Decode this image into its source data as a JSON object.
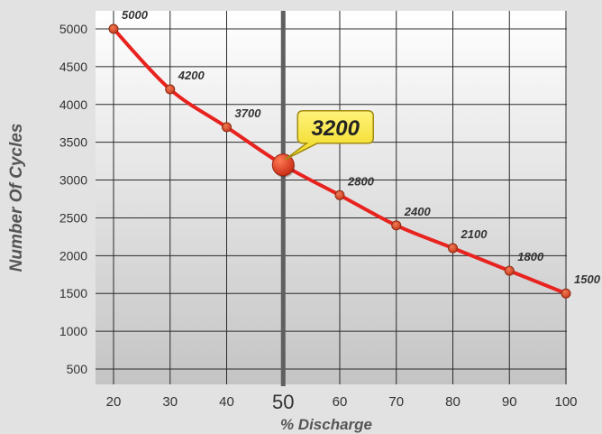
{
  "chart_data": {
    "type": "line",
    "xlabel": "% Discharge",
    "ylabel": "Number Of Cycles",
    "x": [
      20,
      30,
      40,
      50,
      60,
      70,
      80,
      90,
      100
    ],
    "series": [
      {
        "values": [
          5000,
          4200,
          3700,
          3200,
          2800,
          2400,
          2100,
          1800,
          1500
        ]
      }
    ],
    "point_labels": [
      "5000",
      "4200",
      "3700",
      "3200",
      "2800",
      "2400",
      "2100",
      "1800",
      "1500"
    ],
    "x_ticks": [
      "20",
      "30",
      "40",
      "50",
      "60",
      "70",
      "80",
      "90",
      "100"
    ],
    "y_ticks": [
      "500",
      "1000",
      "1500",
      "2000",
      "2500",
      "3000",
      "3500",
      "4000",
      "4500",
      "5000"
    ],
    "xlim": [
      20,
      100
    ],
    "ylim": [
      500,
      5000
    ],
    "highlight": {
      "x": 50,
      "value": 3200,
      "label": "3200"
    },
    "grid": true,
    "colors": {
      "line": "#e8231f",
      "marker": "#d8401f",
      "marker_stroke": "#8a2a10",
      "highlight_line": "#5f5f5f",
      "callout_fill": "#f7e52b",
      "callout_stroke": "#a08a10",
      "grid": "#2a2a2a",
      "background": "#e2e2e2"
    }
  }
}
